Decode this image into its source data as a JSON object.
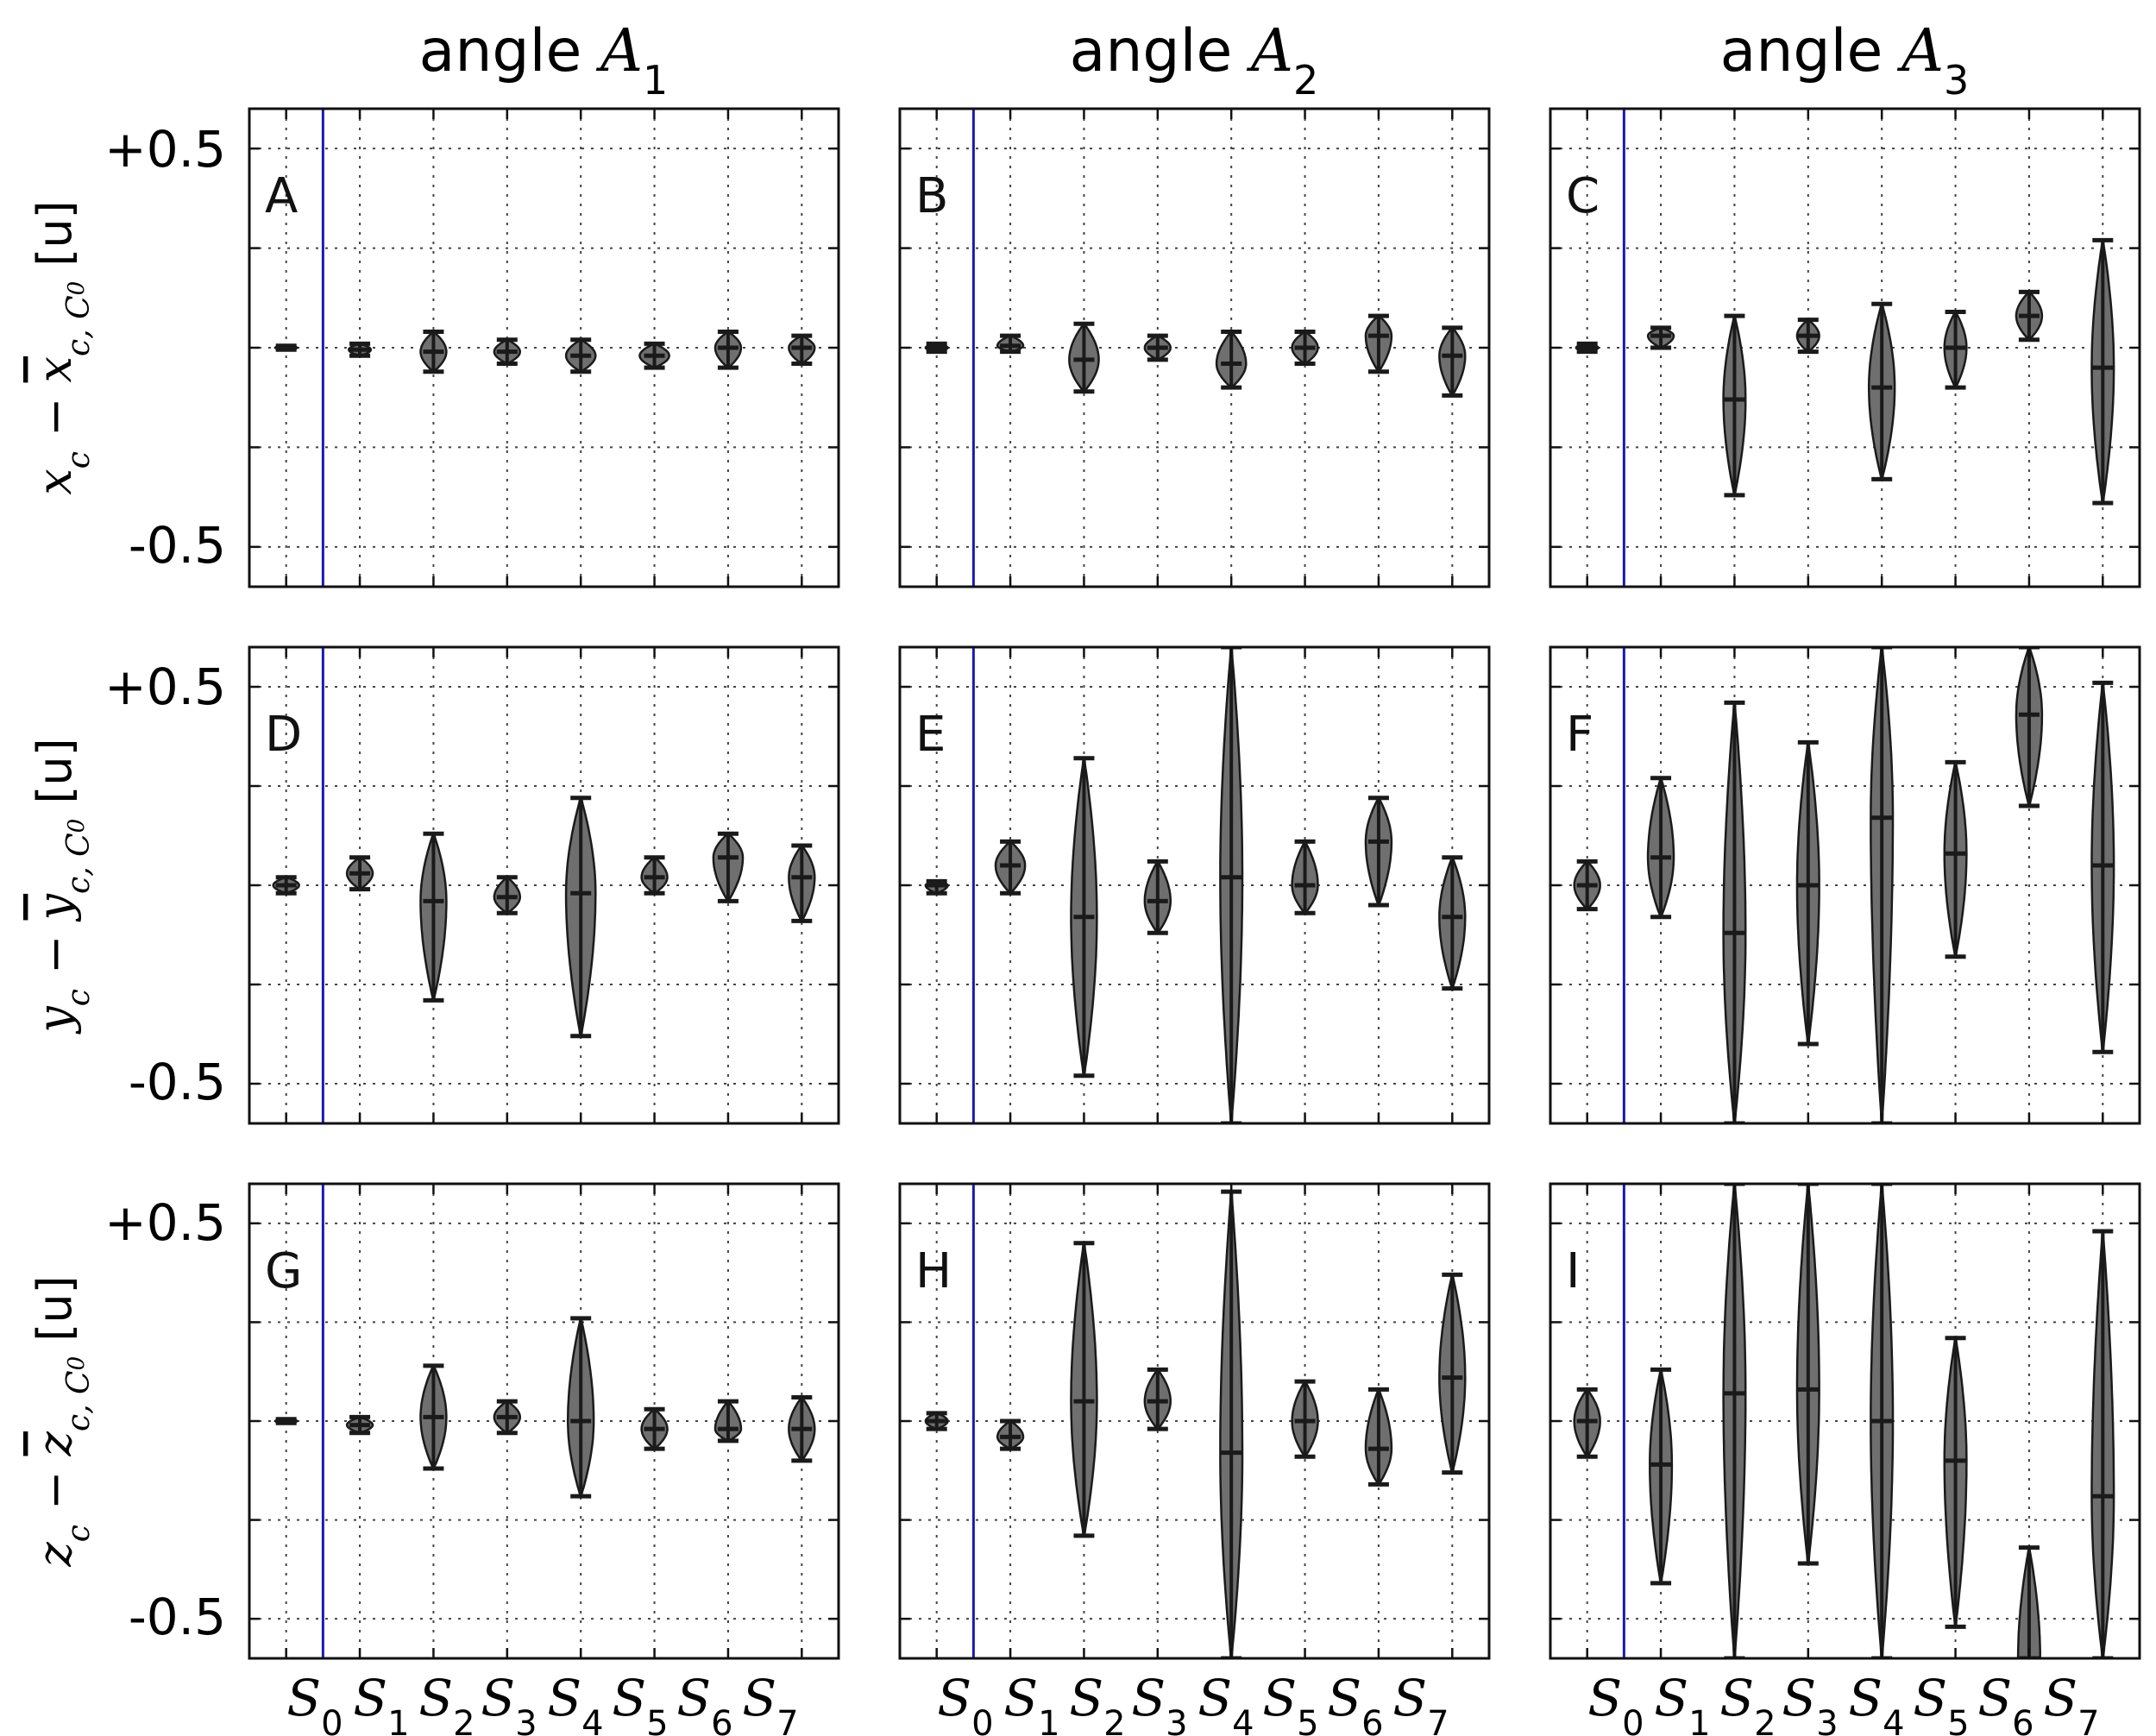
{
  "figure": {
    "column_titles": [
      {
        "prefix": "angle ",
        "symbol": "A",
        "sub": "1"
      },
      {
        "prefix": "angle ",
        "symbol": "A",
        "sub": "2"
      },
      {
        "prefix": "angle ",
        "symbol": "A",
        "sub": "3"
      }
    ],
    "row_labels": [
      {
        "a": "x",
        "a_sub": "c",
        "minus": " − ",
        "b": "x",
        "b_sub": "c, C",
        "b_subsub": "0",
        "unit": " [u]"
      },
      {
        "a": "y",
        "a_sub": "c",
        "minus": " − ",
        "b": "y",
        "b_sub": "c, C",
        "b_subsub": "0",
        "unit": " [u]"
      },
      {
        "a": "z",
        "a_sub": "c",
        "minus": " − ",
        "b": "z",
        "b_sub": "c, C",
        "b_subsub": "0",
        "unit": " [u]"
      }
    ],
    "ytick_labels": [
      "+0.5",
      "-0.5"
    ],
    "xtick_labels": [
      {
        "s": "S",
        "sub": "0"
      },
      {
        "s": "S",
        "sub": "1"
      },
      {
        "s": "S",
        "sub": "2"
      },
      {
        "s": "S",
        "sub": "3"
      },
      {
        "s": "S",
        "sub": "4"
      },
      {
        "s": "S",
        "sub": "5"
      },
      {
        "s": "S",
        "sub": "6"
      },
      {
        "s": "S",
        "sub": "7"
      }
    ]
  },
  "colors": {
    "violin_fill": "#6f6f6f",
    "violin_stroke": "#1a1a1a",
    "separator": "#1a1ab4",
    "grid": "#444444",
    "axes": "#111111"
  },
  "chart_data": [
    {
      "panel": "A",
      "type": "violin",
      "ylim": [
        -0.6,
        0.6
      ],
      "yticks": [
        0.5,
        0.25,
        0,
        -0.25,
        -0.5
      ],
      "separator_x": 0.5,
      "categories": [
        "S0",
        "S1",
        "S2",
        "S3",
        "S4",
        "S5",
        "S6",
        "S7"
      ],
      "violins": [
        {
          "mean": 0.0,
          "min": -0.005,
          "max": 0.005,
          "width": 0.3
        },
        {
          "mean": -0.005,
          "min": -0.02,
          "max": 0.01,
          "width": 0.3
        },
        {
          "mean": -0.01,
          "min": -0.06,
          "max": 0.04,
          "width": 0.35
        },
        {
          "mean": -0.01,
          "min": -0.04,
          "max": 0.02,
          "width": 0.35
        },
        {
          "mean": -0.02,
          "min": -0.06,
          "max": 0.02,
          "width": 0.4
        },
        {
          "mean": -0.02,
          "min": -0.05,
          "max": 0.01,
          "width": 0.4
        },
        {
          "mean": 0.0,
          "min": -0.05,
          "max": 0.04,
          "width": 0.35
        },
        {
          "mean": 0.0,
          "min": -0.04,
          "max": 0.03,
          "width": 0.35
        }
      ]
    },
    {
      "panel": "B",
      "type": "violin",
      "ylim": [
        -0.6,
        0.6
      ],
      "yticks": [
        0.5,
        0.25,
        0,
        -0.25,
        -0.5
      ],
      "separator_x": 0.5,
      "categories": [
        "S0",
        "S1",
        "S2",
        "S3",
        "S4",
        "S5",
        "S6",
        "S7"
      ],
      "violins": [
        {
          "mean": 0.0,
          "min": -0.01,
          "max": 0.01,
          "width": 0.3
        },
        {
          "mean": 0.005,
          "min": -0.01,
          "max": 0.03,
          "width": 0.35
        },
        {
          "mean": -0.03,
          "min": -0.11,
          "max": 0.06,
          "width": 0.4
        },
        {
          "mean": 0.0,
          "min": -0.03,
          "max": 0.03,
          "width": 0.35
        },
        {
          "mean": -0.04,
          "min": -0.1,
          "max": 0.04,
          "width": 0.4
        },
        {
          "mean": 0.0,
          "min": -0.04,
          "max": 0.04,
          "width": 0.35
        },
        {
          "mean": 0.03,
          "min": -0.06,
          "max": 0.08,
          "width": 0.35
        },
        {
          "mean": -0.02,
          "min": -0.12,
          "max": 0.05,
          "width": 0.35
        }
      ]
    },
    {
      "panel": "C",
      "type": "violin",
      "ylim": [
        -0.6,
        0.6
      ],
      "yticks": [
        0.5,
        0.25,
        0,
        -0.25,
        -0.5
      ],
      "separator_x": 0.5,
      "categories": [
        "S0",
        "S1",
        "S2",
        "S3",
        "S4",
        "S5",
        "S6",
        "S7"
      ],
      "violins": [
        {
          "mean": 0.0,
          "min": -0.01,
          "max": 0.01,
          "width": 0.3
        },
        {
          "mean": 0.03,
          "min": 0.0,
          "max": 0.05,
          "width": 0.35
        },
        {
          "mean": -0.13,
          "min": -0.37,
          "max": 0.08,
          "width": 0.3
        },
        {
          "mean": 0.03,
          "min": -0.01,
          "max": 0.07,
          "width": 0.3
        },
        {
          "mean": -0.1,
          "min": -0.33,
          "max": 0.11,
          "width": 0.35
        },
        {
          "mean": 0.0,
          "min": -0.1,
          "max": 0.09,
          "width": 0.3
        },
        {
          "mean": 0.08,
          "min": 0.02,
          "max": 0.14,
          "width": 0.35
        },
        {
          "mean": -0.05,
          "min": -0.39,
          "max": 0.27,
          "width": 0.3
        }
      ]
    },
    {
      "panel": "D",
      "type": "violin",
      "ylim": [
        -0.6,
        0.6
      ],
      "yticks": [
        0.5,
        0.25,
        0,
        -0.25,
        -0.5
      ],
      "separator_x": 0.5,
      "categories": [
        "S0",
        "S1",
        "S2",
        "S3",
        "S4",
        "S5",
        "S6",
        "S7"
      ],
      "violins": [
        {
          "mean": 0.0,
          "min": -0.02,
          "max": 0.02,
          "width": 0.35
        },
        {
          "mean": 0.03,
          "min": -0.01,
          "max": 0.07,
          "width": 0.35
        },
        {
          "mean": -0.04,
          "min": -0.29,
          "max": 0.13,
          "width": 0.35
        },
        {
          "mean": -0.03,
          "min": -0.07,
          "max": 0.02,
          "width": 0.35
        },
        {
          "mean": -0.02,
          "min": -0.38,
          "max": 0.22,
          "width": 0.4
        },
        {
          "mean": 0.02,
          "min": -0.02,
          "max": 0.07,
          "width": 0.35
        },
        {
          "mean": 0.07,
          "min": -0.04,
          "max": 0.13,
          "width": 0.4
        },
        {
          "mean": 0.02,
          "min": -0.09,
          "max": 0.1,
          "width": 0.35
        }
      ]
    },
    {
      "panel": "E",
      "type": "violin",
      "ylim": [
        -0.6,
        0.6
      ],
      "yticks": [
        0.5,
        0.25,
        0,
        -0.25,
        -0.5
      ],
      "separator_x": 0.5,
      "categories": [
        "S0",
        "S1",
        "S2",
        "S3",
        "S4",
        "S5",
        "S6",
        "S7"
      ],
      "violins": [
        {
          "mean": 0.0,
          "min": -0.02,
          "max": 0.01,
          "width": 0.3
        },
        {
          "mean": 0.05,
          "min": -0.02,
          "max": 0.11,
          "width": 0.4
        },
        {
          "mean": -0.08,
          "min": -0.48,
          "max": 0.32,
          "width": 0.35
        },
        {
          "mean": -0.04,
          "min": -0.12,
          "max": 0.06,
          "width": 0.35
        },
        {
          "mean": 0.02,
          "min": -0.6,
          "max": 0.6,
          "width": 0.3
        },
        {
          "mean": 0.0,
          "min": -0.07,
          "max": 0.11,
          "width": 0.35
        },
        {
          "mean": 0.11,
          "min": -0.05,
          "max": 0.22,
          "width": 0.35
        },
        {
          "mean": -0.08,
          "min": -0.26,
          "max": 0.07,
          "width": 0.35
        }
      ]
    },
    {
      "panel": "F",
      "type": "violin",
      "ylim": [
        -0.6,
        0.6
      ],
      "yticks": [
        0.5,
        0.25,
        0,
        -0.25,
        -0.5
      ],
      "separator_x": 0.5,
      "categories": [
        "S0",
        "S1",
        "S2",
        "S3",
        "S4",
        "S5",
        "S6",
        "S7"
      ],
      "violins": [
        {
          "mean": 0.0,
          "min": -0.06,
          "max": 0.06,
          "width": 0.35
        },
        {
          "mean": 0.07,
          "min": -0.08,
          "max": 0.27,
          "width": 0.35
        },
        {
          "mean": -0.12,
          "min": -0.6,
          "max": 0.46,
          "width": 0.3
        },
        {
          "mean": 0.0,
          "min": -0.4,
          "max": 0.36,
          "width": 0.3
        },
        {
          "mean": 0.17,
          "min": -0.6,
          "max": 0.6,
          "width": 0.3
        },
        {
          "mean": 0.08,
          "min": -0.18,
          "max": 0.31,
          "width": 0.3
        },
        {
          "mean": 0.43,
          "min": 0.2,
          "max": 0.6,
          "width": 0.35
        },
        {
          "mean": 0.05,
          "min": -0.42,
          "max": 0.51,
          "width": 0.3
        }
      ]
    },
    {
      "panel": "G",
      "type": "violin",
      "ylim": [
        -0.6,
        0.6
      ],
      "yticks": [
        0.5,
        0.25,
        0,
        -0.25,
        -0.5
      ],
      "separator_x": 0.5,
      "categories": [
        "S0",
        "S1",
        "S2",
        "S3",
        "S4",
        "S5",
        "S6",
        "S7"
      ],
      "violins": [
        {
          "mean": 0.0,
          "min": -0.005,
          "max": 0.005,
          "width": 0.3
        },
        {
          "mean": -0.01,
          "min": -0.03,
          "max": 0.01,
          "width": 0.35
        },
        {
          "mean": 0.01,
          "min": -0.12,
          "max": 0.14,
          "width": 0.35
        },
        {
          "mean": 0.01,
          "min": -0.03,
          "max": 0.05,
          "width": 0.35
        },
        {
          "mean": 0.0,
          "min": -0.19,
          "max": 0.26,
          "width": 0.35
        },
        {
          "mean": -0.02,
          "min": -0.07,
          "max": 0.03,
          "width": 0.35
        },
        {
          "mean": -0.02,
          "min": -0.05,
          "max": 0.05,
          "width": 0.35
        },
        {
          "mean": -0.02,
          "min": -0.1,
          "max": 0.06,
          "width": 0.35
        }
      ]
    },
    {
      "panel": "H",
      "type": "violin",
      "ylim": [
        -0.6,
        0.6
      ],
      "yticks": [
        0.5,
        0.25,
        0,
        -0.25,
        -0.5
      ],
      "separator_x": 0.5,
      "categories": [
        "S0",
        "S1",
        "S2",
        "S3",
        "S4",
        "S5",
        "S6",
        "S7"
      ],
      "violins": [
        {
          "mean": 0.0,
          "min": -0.02,
          "max": 0.02,
          "width": 0.3
        },
        {
          "mean": -0.04,
          "min": -0.07,
          "max": 0.0,
          "width": 0.35
        },
        {
          "mean": 0.05,
          "min": -0.29,
          "max": 0.45,
          "width": 0.35
        },
        {
          "mean": 0.05,
          "min": -0.02,
          "max": 0.13,
          "width": 0.35
        },
        {
          "mean": -0.08,
          "min": -0.6,
          "max": 0.58,
          "width": 0.3
        },
        {
          "mean": 0.0,
          "min": -0.09,
          "max": 0.1,
          "width": 0.35
        },
        {
          "mean": -0.07,
          "min": -0.16,
          "max": 0.08,
          "width": 0.35
        },
        {
          "mean": 0.11,
          "min": -0.13,
          "max": 0.37,
          "width": 0.35
        }
      ]
    },
    {
      "panel": "I",
      "type": "violin",
      "ylim": [
        -0.6,
        0.6
      ],
      "yticks": [
        0.5,
        0.25,
        0,
        -0.25,
        -0.5
      ],
      "separator_x": 0.5,
      "categories": [
        "S0",
        "S1",
        "S2",
        "S3",
        "S4",
        "S5",
        "S6",
        "S7"
      ],
      "violins": [
        {
          "mean": 0.0,
          "min": -0.09,
          "max": 0.08,
          "width": 0.35
        },
        {
          "mean": -0.11,
          "min": -0.41,
          "max": 0.13,
          "width": 0.3
        },
        {
          "mean": 0.07,
          "min": -0.6,
          "max": 0.6,
          "width": 0.3
        },
        {
          "mean": 0.08,
          "min": -0.36,
          "max": 0.6,
          "width": 0.3
        },
        {
          "mean": 0.0,
          "min": -0.6,
          "max": 0.6,
          "width": 0.3
        },
        {
          "mean": -0.1,
          "min": -0.52,
          "max": 0.21,
          "width": 0.3
        },
        {
          "mean": -0.6,
          "min": -0.6,
          "max": -0.32,
          "width": 0.3
        },
        {
          "mean": -0.19,
          "min": -0.6,
          "max": 0.48,
          "width": 0.3
        }
      ]
    }
  ]
}
